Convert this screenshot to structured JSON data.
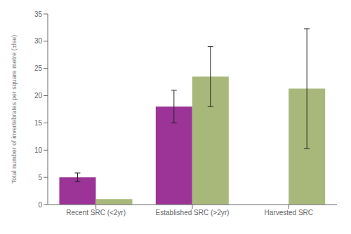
{
  "chart_data": {
    "type": "bar",
    "categories": [
      "Recent SRC (<2yr)",
      "Established SRC (>2yr)",
      "Harvested SRC"
    ],
    "series": [
      {
        "color": "#9b3496",
        "values": [
          5.0,
          18.0,
          null
        ],
        "errors": [
          0.8,
          3.0,
          null
        ]
      },
      {
        "color": "#a8b87a",
        "values": [
          1.0,
          23.5,
          21.3
        ],
        "errors": [
          null,
          5.5,
          11.0
        ]
      }
    ],
    "ylabel": "Total number of invertebrates per square metre (±lse)",
    "ylim": [
      0,
      35
    ],
    "yticks": [
      0,
      5,
      10,
      15,
      20,
      25,
      30,
      35
    ],
    "grid": false
  }
}
